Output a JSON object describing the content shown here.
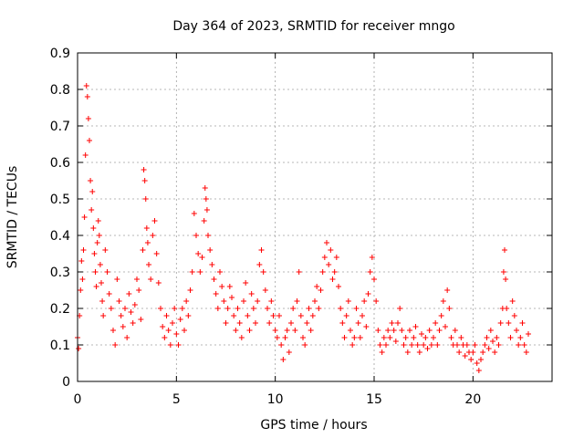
{
  "chart_data": {
    "type": "scatter",
    "title": "Day 364 of 2023, SRMTID for receiver mngo",
    "xlabel": "GPS time / hours",
    "ylabel": "SRMTID / TECUs",
    "xlim": [
      0,
      24
    ],
    "ylim": [
      0,
      0.9
    ],
    "xticks": [
      0,
      5,
      10,
      15,
      20
    ],
    "yticks": [
      0,
      0.1,
      0.2,
      0.3,
      0.4,
      0.5,
      0.6,
      0.7,
      0.8,
      0.9
    ],
    "grid": true,
    "marker": "+",
    "marker_color": "#ff0000",
    "series": [
      {
        "name": "SRMTID",
        "points": [
          [
            0.0,
            0.12
          ],
          [
            0.05,
            0.09
          ],
          [
            0.1,
            0.18
          ],
          [
            0.15,
            0.25
          ],
          [
            0.2,
            0.33
          ],
          [
            0.25,
            0.28
          ],
          [
            0.3,
            0.36
          ],
          [
            0.35,
            0.45
          ],
          [
            0.4,
            0.62
          ],
          [
            0.45,
            0.81
          ],
          [
            0.5,
            0.78
          ],
          [
            0.55,
            0.72
          ],
          [
            0.6,
            0.66
          ],
          [
            0.65,
            0.55
          ],
          [
            0.7,
            0.47
          ],
          [
            0.75,
            0.52
          ],
          [
            0.8,
            0.42
          ],
          [
            0.85,
            0.35
          ],
          [
            0.9,
            0.3
          ],
          [
            0.95,
            0.26
          ],
          [
            1.0,
            0.38
          ],
          [
            1.05,
            0.44
          ],
          [
            1.1,
            0.4
          ],
          [
            1.15,
            0.32
          ],
          [
            1.2,
            0.27
          ],
          [
            1.25,
            0.22
          ],
          [
            1.3,
            0.18
          ],
          [
            1.4,
            0.36
          ],
          [
            1.5,
            0.3
          ],
          [
            1.6,
            0.24
          ],
          [
            1.7,
            0.2
          ],
          [
            1.8,
            0.14
          ],
          [
            1.9,
            0.1
          ],
          [
            2.0,
            0.28
          ],
          [
            2.1,
            0.22
          ],
          [
            2.2,
            0.18
          ],
          [
            2.3,
            0.15
          ],
          [
            2.4,
            0.2
          ],
          [
            2.5,
            0.12
          ],
          [
            2.6,
            0.24
          ],
          [
            2.7,
            0.19
          ],
          [
            2.8,
            0.16
          ],
          [
            2.9,
            0.21
          ],
          [
            3.0,
            0.28
          ],
          [
            3.1,
            0.25
          ],
          [
            3.2,
            0.17
          ],
          [
            3.3,
            0.36
          ],
          [
            3.35,
            0.58
          ],
          [
            3.4,
            0.55
          ],
          [
            3.45,
            0.5
          ],
          [
            3.5,
            0.42
          ],
          [
            3.55,
            0.38
          ],
          [
            3.6,
            0.32
          ],
          [
            3.7,
            0.28
          ],
          [
            3.8,
            0.4
          ],
          [
            3.9,
            0.44
          ],
          [
            4.0,
            0.35
          ],
          [
            4.1,
            0.27
          ],
          [
            4.2,
            0.2
          ],
          [
            4.3,
            0.15
          ],
          [
            4.4,
            0.12
          ],
          [
            4.5,
            0.18
          ],
          [
            4.6,
            0.14
          ],
          [
            4.7,
            0.1
          ],
          [
            4.8,
            0.16
          ],
          [
            4.9,
            0.2
          ],
          [
            5.0,
            0.13
          ],
          [
            5.1,
            0.1
          ],
          [
            5.2,
            0.17
          ],
          [
            5.3,
            0.2
          ],
          [
            5.4,
            0.14
          ],
          [
            5.5,
            0.22
          ],
          [
            5.6,
            0.18
          ],
          [
            5.7,
            0.25
          ],
          [
            5.8,
            0.3
          ],
          [
            5.9,
            0.46
          ],
          [
            6.0,
            0.4
          ],
          [
            6.1,
            0.35
          ],
          [
            6.2,
            0.3
          ],
          [
            6.3,
            0.34
          ],
          [
            6.4,
            0.44
          ],
          [
            6.45,
            0.53
          ],
          [
            6.5,
            0.5
          ],
          [
            6.55,
            0.47
          ],
          [
            6.6,
            0.4
          ],
          [
            6.7,
            0.36
          ],
          [
            6.8,
            0.32
          ],
          [
            6.9,
            0.28
          ],
          [
            7.0,
            0.24
          ],
          [
            7.1,
            0.2
          ],
          [
            7.2,
            0.3
          ],
          [
            7.3,
            0.26
          ],
          [
            7.4,
            0.22
          ],
          [
            7.5,
            0.16
          ],
          [
            7.6,
            0.2
          ],
          [
            7.7,
            0.26
          ],
          [
            7.8,
            0.23
          ],
          [
            7.9,
            0.18
          ],
          [
            8.0,
            0.14
          ],
          [
            8.1,
            0.2
          ],
          [
            8.2,
            0.16
          ],
          [
            8.3,
            0.12
          ],
          [
            8.4,
            0.22
          ],
          [
            8.5,
            0.27
          ],
          [
            8.6,
            0.18
          ],
          [
            8.7,
            0.14
          ],
          [
            8.8,
            0.24
          ],
          [
            8.9,
            0.2
          ],
          [
            9.0,
            0.16
          ],
          [
            9.1,
            0.22
          ],
          [
            9.2,
            0.32
          ],
          [
            9.3,
            0.36
          ],
          [
            9.4,
            0.3
          ],
          [
            9.5,
            0.25
          ],
          [
            9.6,
            0.2
          ],
          [
            9.7,
            0.16
          ],
          [
            9.8,
            0.22
          ],
          [
            9.9,
            0.18
          ],
          [
            10.0,
            0.14
          ],
          [
            10.1,
            0.12
          ],
          [
            10.2,
            0.18
          ],
          [
            10.3,
            0.1
          ],
          [
            10.4,
            0.06
          ],
          [
            10.5,
            0.12
          ],
          [
            10.6,
            0.14
          ],
          [
            10.7,
            0.08
          ],
          [
            10.8,
            0.16
          ],
          [
            10.9,
            0.2
          ],
          [
            11.0,
            0.14
          ],
          [
            11.1,
            0.22
          ],
          [
            11.2,
            0.3
          ],
          [
            11.3,
            0.18
          ],
          [
            11.4,
            0.12
          ],
          [
            11.5,
            0.1
          ],
          [
            11.6,
            0.16
          ],
          [
            11.7,
            0.2
          ],
          [
            11.8,
            0.14
          ],
          [
            11.9,
            0.18
          ],
          [
            12.0,
            0.22
          ],
          [
            12.1,
            0.26
          ],
          [
            12.2,
            0.2
          ],
          [
            12.3,
            0.25
          ],
          [
            12.4,
            0.3
          ],
          [
            12.5,
            0.34
          ],
          [
            12.6,
            0.38
          ],
          [
            12.7,
            0.32
          ],
          [
            12.8,
            0.36
          ],
          [
            12.9,
            0.28
          ],
          [
            13.0,
            0.3
          ],
          [
            13.1,
            0.34
          ],
          [
            13.2,
            0.26
          ],
          [
            13.3,
            0.2
          ],
          [
            13.4,
            0.16
          ],
          [
            13.5,
            0.12
          ],
          [
            13.6,
            0.18
          ],
          [
            13.7,
            0.22
          ],
          [
            13.8,
            0.14
          ],
          [
            13.9,
            0.1
          ],
          [
            14.0,
            0.12
          ],
          [
            14.1,
            0.2
          ],
          [
            14.2,
            0.16
          ],
          [
            14.3,
            0.12
          ],
          [
            14.4,
            0.18
          ],
          [
            14.5,
            0.22
          ],
          [
            14.6,
            0.15
          ],
          [
            14.7,
            0.24
          ],
          [
            14.8,
            0.3
          ],
          [
            14.9,
            0.34
          ],
          [
            15.0,
            0.28
          ],
          [
            15.1,
            0.22
          ],
          [
            15.2,
            0.14
          ],
          [
            15.3,
            0.1
          ],
          [
            15.4,
            0.08
          ],
          [
            15.5,
            0.12
          ],
          [
            15.6,
            0.1
          ],
          [
            15.7,
            0.14
          ],
          [
            15.8,
            0.12
          ],
          [
            15.9,
            0.16
          ],
          [
            16.0,
            0.14
          ],
          [
            16.1,
            0.11
          ],
          [
            16.2,
            0.16
          ],
          [
            16.3,
            0.2
          ],
          [
            16.4,
            0.14
          ],
          [
            16.5,
            0.1
          ],
          [
            16.6,
            0.12
          ],
          [
            16.7,
            0.08
          ],
          [
            16.8,
            0.14
          ],
          [
            16.9,
            0.1
          ],
          [
            17.0,
            0.12
          ],
          [
            17.1,
            0.15
          ],
          [
            17.2,
            0.1
          ],
          [
            17.3,
            0.08
          ],
          [
            17.4,
            0.13
          ],
          [
            17.5,
            0.1
          ],
          [
            17.6,
            0.12
          ],
          [
            17.7,
            0.09
          ],
          [
            17.8,
            0.14
          ],
          [
            17.9,
            0.1
          ],
          [
            18.0,
            0.12
          ],
          [
            18.1,
            0.16
          ],
          [
            18.2,
            0.1
          ],
          [
            18.3,
            0.14
          ],
          [
            18.4,
            0.18
          ],
          [
            18.5,
            0.22
          ],
          [
            18.6,
            0.15
          ],
          [
            18.7,
            0.25
          ],
          [
            18.8,
            0.2
          ],
          [
            18.9,
            0.12
          ],
          [
            19.0,
            0.1
          ],
          [
            19.1,
            0.14
          ],
          [
            19.2,
            0.1
          ],
          [
            19.3,
            0.08
          ],
          [
            19.4,
            0.12
          ],
          [
            19.5,
            0.1
          ],
          [
            19.6,
            0.07
          ],
          [
            19.7,
            0.1
          ],
          [
            19.8,
            0.08
          ],
          [
            19.9,
            0.06
          ],
          [
            20.0,
            0.08
          ],
          [
            20.1,
            0.1
          ],
          [
            20.2,
            0.05
          ],
          [
            20.3,
            0.03
          ],
          [
            20.4,
            0.06
          ],
          [
            20.5,
            0.08
          ],
          [
            20.6,
            0.1
          ],
          [
            20.7,
            0.12
          ],
          [
            20.8,
            0.09
          ],
          [
            20.9,
            0.14
          ],
          [
            21.0,
            0.11
          ],
          [
            21.1,
            0.08
          ],
          [
            21.2,
            0.12
          ],
          [
            21.3,
            0.1
          ],
          [
            21.4,
            0.16
          ],
          [
            21.5,
            0.2
          ],
          [
            21.55,
            0.3
          ],
          [
            21.6,
            0.36
          ],
          [
            21.65,
            0.28
          ],
          [
            21.7,
            0.2
          ],
          [
            21.8,
            0.16
          ],
          [
            21.9,
            0.12
          ],
          [
            22.0,
            0.22
          ],
          [
            22.1,
            0.18
          ],
          [
            22.2,
            0.14
          ],
          [
            22.3,
            0.1
          ],
          [
            22.4,
            0.12
          ],
          [
            22.5,
            0.16
          ],
          [
            22.6,
            0.1
          ],
          [
            22.7,
            0.08
          ],
          [
            22.8,
            0.13
          ]
        ]
      }
    ]
  }
}
